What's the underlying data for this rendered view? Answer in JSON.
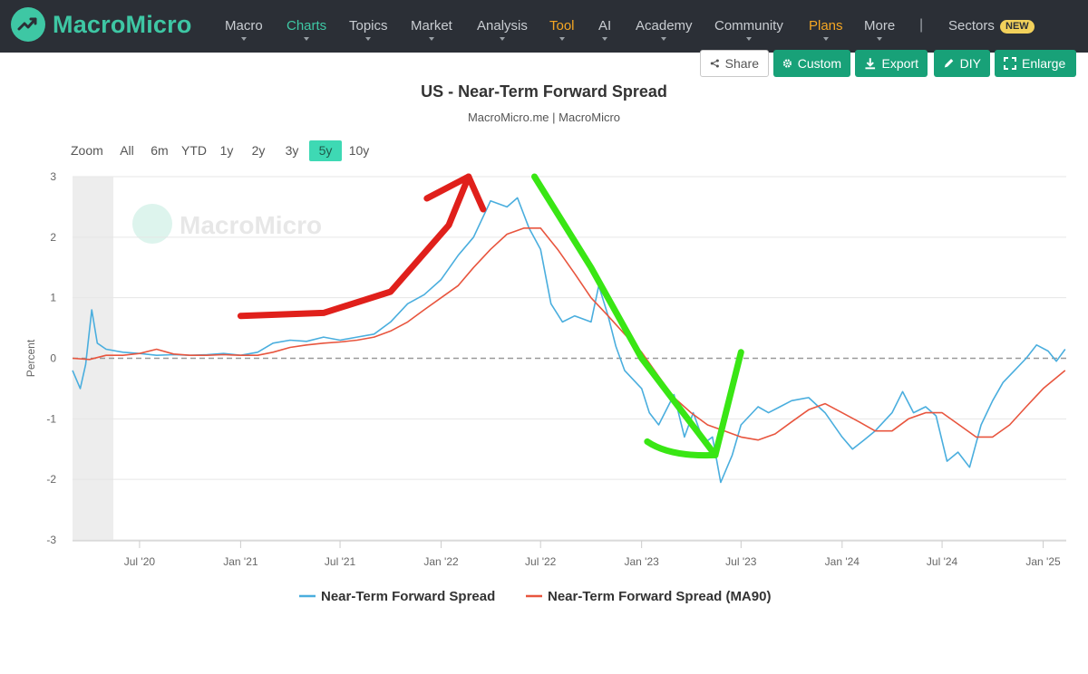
{
  "brand": {
    "name": "MacroMicro"
  },
  "nav": {
    "items": [
      {
        "label": "Macro",
        "color": "#c9cdd2"
      },
      {
        "label": "Charts",
        "color": "#3ec7a4"
      },
      {
        "label": "Topics",
        "color": "#c9cdd2"
      },
      {
        "label": "Market",
        "color": "#c9cdd2"
      },
      {
        "label": "Analysis",
        "color": "#c9cdd2"
      },
      {
        "label": "Tool",
        "color": "#f5a623"
      },
      {
        "label": "AI",
        "color": "#c9cdd2"
      },
      {
        "label": "Academy",
        "color": "#c9cdd2"
      },
      {
        "label": "Community",
        "color": "#c9cdd2"
      },
      {
        "label": "Plans",
        "color": "#f5a623"
      },
      {
        "label": "More",
        "color": "#c9cdd2"
      }
    ],
    "separator": "|",
    "sectors_label": "Sectors",
    "new_badge": "NEW"
  },
  "toolbar": {
    "share": "Share",
    "custom": "Custom",
    "export": "Export",
    "diy": "DIY",
    "enlarge": "Enlarge"
  },
  "zoom": {
    "label": "Zoom",
    "options": [
      "All",
      "6m",
      "YTD",
      "1y",
      "2y",
      "3y",
      "5y",
      "10y"
    ],
    "selected": "5y"
  },
  "watermark": "MacroMicro",
  "colors": {
    "accent": "#3ec7a4",
    "button": "#18a178",
    "series_main": "#4aaede",
    "series_ma": "#e8553e",
    "annotation_red": "#e0201b",
    "annotation_green": "#39e614"
  },
  "chart_data": {
    "type": "line",
    "title": "US - Near-Term Forward Spread",
    "subtitle": "MacroMicro.me | MacroMicro",
    "ylabel": "Percent",
    "ylim": [
      -3,
      3
    ],
    "yticks": [
      "3",
      "2",
      "1",
      "0",
      "-1",
      "-2",
      "-3"
    ],
    "x_ticks": [
      "Jul '20",
      "Jan '21",
      "Jul '21",
      "Jan '22",
      "Jul '22",
      "Jan '23",
      "Jul '23",
      "Jan '24",
      "Jul '24",
      "Jan '25"
    ],
    "x_range": [
      "2020-03",
      "2025-02"
    ],
    "zero_line": 0,
    "legend_position": "bottom",
    "series": [
      {
        "name": "Near-Term Forward Spread",
        "color": "#4aaede",
        "points": [
          [
            "2020-03-01",
            -0.2
          ],
          [
            "2020-03-15",
            -0.5
          ],
          [
            "2020-03-25",
            -0.1
          ],
          [
            "2020-04-05",
            0.8
          ],
          [
            "2020-04-15",
            0.25
          ],
          [
            "2020-05-01",
            0.15
          ],
          [
            "2020-06-01",
            0.1
          ],
          [
            "2020-07-01",
            0.08
          ],
          [
            "2020-08-01",
            0.05
          ],
          [
            "2020-09-01",
            0.06
          ],
          [
            "2020-10-01",
            0.05
          ],
          [
            "2020-11-01",
            0.06
          ],
          [
            "2020-12-01",
            0.08
          ],
          [
            "2021-01-01",
            0.05
          ],
          [
            "2021-02-01",
            0.1
          ],
          [
            "2021-03-01",
            0.25
          ],
          [
            "2021-04-01",
            0.3
          ],
          [
            "2021-05-01",
            0.28
          ],
          [
            "2021-06-01",
            0.35
          ],
          [
            "2021-07-01",
            0.3
          ],
          [
            "2021-08-01",
            0.35
          ],
          [
            "2021-09-01",
            0.4
          ],
          [
            "2021-10-01",
            0.6
          ],
          [
            "2021-11-01",
            0.9
          ],
          [
            "2021-12-01",
            1.05
          ],
          [
            "2022-01-01",
            1.3
          ],
          [
            "2022-02-01",
            1.7
          ],
          [
            "2022-03-01",
            2.0
          ],
          [
            "2022-04-01",
            2.6
          ],
          [
            "2022-05-01",
            2.5
          ],
          [
            "2022-05-20",
            2.65
          ],
          [
            "2022-06-10",
            2.15
          ],
          [
            "2022-07-01",
            1.8
          ],
          [
            "2022-07-20",
            0.9
          ],
          [
            "2022-08-10",
            0.6
          ],
          [
            "2022-09-01",
            0.7
          ],
          [
            "2022-10-01",
            0.6
          ],
          [
            "2022-10-15",
            1.2
          ],
          [
            "2022-11-01",
            0.7
          ],
          [
            "2022-11-15",
            0.2
          ],
          [
            "2022-12-01",
            -0.2
          ],
          [
            "2023-01-01",
            -0.5
          ],
          [
            "2023-01-15",
            -0.9
          ],
          [
            "2023-02-01",
            -1.1
          ],
          [
            "2023-03-01",
            -0.6
          ],
          [
            "2023-03-20",
            -1.3
          ],
          [
            "2023-04-05",
            -0.9
          ],
          [
            "2023-04-25",
            -1.4
          ],
          [
            "2023-05-10",
            -1.3
          ],
          [
            "2023-05-25",
            -2.05
          ],
          [
            "2023-06-15",
            -1.6
          ],
          [
            "2023-07-01",
            -1.1
          ],
          [
            "2023-08-01",
            -0.8
          ],
          [
            "2023-08-20",
            -0.9
          ],
          [
            "2023-09-10",
            -0.8
          ],
          [
            "2023-10-01",
            -0.7
          ],
          [
            "2023-11-01",
            -0.65
          ],
          [
            "2023-12-01",
            -0.9
          ],
          [
            "2024-01-01",
            -1.3
          ],
          [
            "2024-01-20",
            -1.5
          ],
          [
            "2024-02-10",
            -1.35
          ],
          [
            "2024-03-01",
            -1.2
          ],
          [
            "2024-04-01",
            -0.9
          ],
          [
            "2024-04-20",
            -0.55
          ],
          [
            "2024-05-10",
            -0.9
          ],
          [
            "2024-06-01",
            -0.8
          ],
          [
            "2024-06-20",
            -0.95
          ],
          [
            "2024-07-10",
            -1.7
          ],
          [
            "2024-07-30",
            -1.55
          ],
          [
            "2024-08-20",
            -1.8
          ],
          [
            "2024-09-10",
            -1.1
          ],
          [
            "2024-10-01",
            -0.7
          ],
          [
            "2024-10-20",
            -0.4
          ],
          [
            "2024-11-10",
            -0.2
          ],
          [
            "2024-12-01",
            0.0
          ],
          [
            "2024-12-20",
            0.22
          ],
          [
            "2025-01-10",
            0.12
          ],
          [
            "2025-01-25",
            -0.05
          ],
          [
            "2025-02-10",
            0.15
          ]
        ]
      },
      {
        "name": "Near-Term Forward Spread (MA90)",
        "color": "#e8553e",
        "points": [
          [
            "2020-03-01",
            0.0
          ],
          [
            "2020-04-01",
            -0.02
          ],
          [
            "2020-05-01",
            0.05
          ],
          [
            "2020-06-01",
            0.05
          ],
          [
            "2020-07-01",
            0.08
          ],
          [
            "2020-08-01",
            0.15
          ],
          [
            "2020-09-01",
            0.07
          ],
          [
            "2020-10-01",
            0.05
          ],
          [
            "2020-11-01",
            0.05
          ],
          [
            "2020-12-01",
            0.06
          ],
          [
            "2021-01-01",
            0.05
          ],
          [
            "2021-02-01",
            0.05
          ],
          [
            "2021-03-01",
            0.1
          ],
          [
            "2021-04-01",
            0.18
          ],
          [
            "2021-05-01",
            0.22
          ],
          [
            "2021-06-01",
            0.25
          ],
          [
            "2021-07-01",
            0.27
          ],
          [
            "2021-08-01",
            0.3
          ],
          [
            "2021-09-01",
            0.35
          ],
          [
            "2021-10-01",
            0.45
          ],
          [
            "2021-11-01",
            0.6
          ],
          [
            "2021-12-01",
            0.8
          ],
          [
            "2022-01-01",
            1.0
          ],
          [
            "2022-02-01",
            1.2
          ],
          [
            "2022-03-01",
            1.5
          ],
          [
            "2022-04-01",
            1.8
          ],
          [
            "2022-05-01",
            2.05
          ],
          [
            "2022-06-01",
            2.15
          ],
          [
            "2022-07-01",
            2.15
          ],
          [
            "2022-08-01",
            1.8
          ],
          [
            "2022-09-01",
            1.4
          ],
          [
            "2022-10-01",
            1.0
          ],
          [
            "2022-11-01",
            0.7
          ],
          [
            "2022-12-01",
            0.4
          ],
          [
            "2023-01-01",
            0.1
          ],
          [
            "2023-02-01",
            -0.3
          ],
          [
            "2023-03-01",
            -0.65
          ],
          [
            "2023-04-01",
            -0.9
          ],
          [
            "2023-05-01",
            -1.1
          ],
          [
            "2023-06-01",
            -1.2
          ],
          [
            "2023-07-01",
            -1.3
          ],
          [
            "2023-08-01",
            -1.35
          ],
          [
            "2023-09-01",
            -1.25
          ],
          [
            "2023-10-01",
            -1.05
          ],
          [
            "2023-11-01",
            -0.85
          ],
          [
            "2023-12-01",
            -0.75
          ],
          [
            "2024-01-01",
            -0.9
          ],
          [
            "2024-02-01",
            -1.05
          ],
          [
            "2024-03-01",
            -1.2
          ],
          [
            "2024-04-01",
            -1.2
          ],
          [
            "2024-05-01",
            -1.0
          ],
          [
            "2024-06-01",
            -0.9
          ],
          [
            "2024-07-01",
            -0.9
          ],
          [
            "2024-08-01",
            -1.1
          ],
          [
            "2024-09-01",
            -1.3
          ],
          [
            "2024-10-01",
            -1.3
          ],
          [
            "2024-11-01",
            -1.1
          ],
          [
            "2024-12-01",
            -0.8
          ],
          [
            "2025-01-01",
            -0.5
          ],
          [
            "2025-02-10",
            -0.2
          ]
        ]
      }
    ],
    "annotations": [
      {
        "type": "arrow",
        "color": "#e0201b",
        "description_points": [
          [
            "2021-01-01",
            0.7
          ],
          [
            "2021-06-01",
            0.75
          ],
          [
            "2021-10-01",
            1.1
          ],
          [
            "2022-01-15",
            2.2
          ],
          [
            "2022-02-20",
            3.0
          ]
        ]
      },
      {
        "type": "stroke",
        "color": "#39e614",
        "description_points": [
          [
            "2022-06-20",
            3.0
          ],
          [
            "2022-10-01",
            1.5
          ],
          [
            "2023-01-01",
            0.0
          ],
          [
            "2023-05-15",
            -1.6
          ],
          [
            "2023-07-01",
            0.1
          ]
        ]
      }
    ]
  }
}
